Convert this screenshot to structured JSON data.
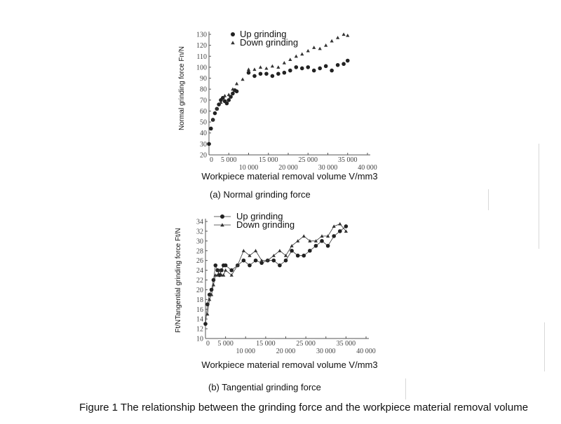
{
  "figure_caption": "Figure 1 The relationship between the grinding force and the workpiece material removal volume",
  "chart_data": [
    {
      "type": "scatter",
      "caption": "(a) Normal grinding force",
      "xlabel": "Workpiece material removal volume V/mm3",
      "ylabel": "Normal grinding force Fn/N",
      "xlim": [
        0,
        40000
      ],
      "ylim": [
        20,
        130
      ],
      "x_ticks": [
        0,
        5000,
        10000,
        15000,
        20000,
        25000,
        30000,
        35000,
        40000
      ],
      "x_tick_labels": [
        "0",
        "5 000",
        "10 000",
        "15 000",
        "20 000",
        "25 000",
        "30 000",
        "35 000",
        "40 000"
      ],
      "y_ticks": [
        20,
        30,
        40,
        50,
        60,
        70,
        80,
        90,
        100,
        110,
        120,
        130
      ],
      "y_tick_labels": [
        "20",
        "30",
        "40",
        "50",
        "60",
        "70",
        "80",
        "90",
        "100",
        "110",
        "120",
        "130"
      ],
      "legend_position": "top-left",
      "series": [
        {
          "name": "Up grinding",
          "marker": "circle",
          "x": [
            0,
            500,
            1000,
            1500,
            2000,
            2500,
            3000,
            3500,
            4000,
            4500,
            5000,
            5500,
            6000,
            6500,
            7000,
            10000,
            11500,
            13000,
            14500,
            16000,
            17500,
            19000,
            20500,
            22000,
            23500,
            25000,
            26500,
            28000,
            29500,
            31000,
            32500,
            34000,
            35000
          ],
          "y": [
            30,
            44,
            52,
            58,
            62,
            66,
            70,
            72,
            69,
            67,
            70,
            73,
            76,
            79,
            78,
            95,
            92,
            94,
            94,
            92,
            94,
            95,
            97,
            100,
            99,
            100,
            97,
            99,
            101,
            97,
            102,
            103,
            106
          ]
        },
        {
          "name": "Down grinding",
          "marker": "triangle",
          "x": [
            1000,
            2000,
            3000,
            4000,
            5000,
            6000,
            7000,
            8500,
            10000,
            11500,
            13000,
            14500,
            16000,
            17500,
            19000,
            20500,
            22000,
            23500,
            25000,
            26500,
            28000,
            29500,
            31000,
            32500,
            34000,
            35000
          ],
          "y": [
            52,
            62,
            68,
            74,
            75,
            80,
            85,
            89,
            98,
            98,
            100,
            99,
            101,
            100,
            104,
            107,
            110,
            112,
            115,
            118,
            117,
            120,
            124,
            127,
            130,
            129
          ]
        }
      ]
    },
    {
      "type": "line",
      "caption": "(b) Tangential grinding force",
      "xlabel": "Workpiece material removal volume V/mm3",
      "ylabel": "Ft/NTangential grinding force Ft/N",
      "xlim": [
        0,
        40000
      ],
      "ylim": [
        10,
        34
      ],
      "x_ticks": [
        0,
        5000,
        10000,
        15000,
        20000,
        25000,
        30000,
        35000,
        40000
      ],
      "x_tick_labels": [
        "0",
        "5 000",
        "10 000",
        "15 000",
        "20 000",
        "25 000",
        "30 000",
        "35 000",
        "40 000"
      ],
      "y_ticks": [
        10,
        12,
        14,
        16,
        18,
        20,
        22,
        24,
        26,
        28,
        30,
        32,
        34
      ],
      "y_tick_labels": [
        "10",
        "12",
        "14",
        "16",
        "18",
        "20",
        "22",
        "24",
        "26",
        "28",
        "30",
        "32",
        "34"
      ],
      "legend_position": "top-left",
      "series": [
        {
          "name": "Up grinding",
          "marker": "circle",
          "x": [
            0,
            500,
            1000,
            1500,
            2000,
            2500,
            3000,
            3500,
            4000,
            4500,
            5000,
            6500,
            8000,
            9500,
            11000,
            12500,
            14000,
            15500,
            17000,
            18500,
            20000,
            21500,
            23000,
            24500,
            26000,
            27500,
            29000,
            30500,
            32000,
            33500,
            35000
          ],
          "y": [
            13,
            17,
            19,
            20,
            22,
            25,
            24,
            23,
            24,
            25,
            25,
            24,
            25,
            26,
            25,
            26,
            25.5,
            26,
            26,
            25,
            26,
            28,
            27,
            27,
            28,
            29,
            30,
            29,
            31,
            32,
            33
          ]
        },
        {
          "name": "Down grinding",
          "marker": "triangle",
          "x": [
            500,
            1000,
            1500,
            2000,
            2500,
            3000,
            3500,
            4000,
            4500,
            5000,
            6500,
            8000,
            9500,
            11000,
            12500,
            14000,
            15500,
            17000,
            18500,
            20000,
            21500,
            23000,
            24500,
            26000,
            27500,
            29000,
            30500,
            32000,
            33500,
            35000
          ],
          "y": [
            15,
            18,
            19,
            21,
            23,
            23,
            24,
            23,
            23,
            24,
            23,
            25,
            28,
            27,
            28,
            26,
            26,
            27,
            28,
            27,
            29,
            30,
            31,
            30,
            30,
            31,
            31,
            33,
            33.5,
            32
          ]
        }
      ]
    }
  ]
}
